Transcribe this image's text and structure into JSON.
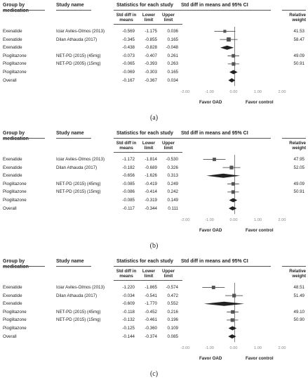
{
  "headers": {
    "group": "Group by medication",
    "study": "Study name",
    "stats": "Statistics for each study",
    "std_diff": "Std diff in means",
    "lower": "Lower limit",
    "upper": "Upper limit",
    "ci": "Std diff in means and 95% CI",
    "weight": "Relative weight"
  },
  "axis_ticks": [
    "-2.00",
    "-1.00",
    "0.00",
    "1.00",
    "2.00"
  ],
  "favor_left": "Favor OAD",
  "favor_right": "Favor control",
  "chart_data": [
    {
      "type": "forest",
      "caption": "(a)",
      "xlim": [
        -2,
        2
      ],
      "rows": [
        {
          "group": "Exenatide",
          "study": "Iciar Aviles-Olmos (2013)",
          "est": "-0.569",
          "lo": "-1.175",
          "hi": "0.036",
          "weight": "41.53",
          "kind": "study"
        },
        {
          "group": "Exenatide",
          "study": "Dilan Athauda (2017)",
          "est": "-0.345",
          "lo": "-0.855",
          "hi": "0.165",
          "weight": "58.47",
          "kind": "study"
        },
        {
          "group": "Exenatide",
          "study": "",
          "est": "-0.438",
          "lo": "-0.828",
          "hi": "-0.048",
          "weight": "",
          "kind": "subtotal"
        },
        {
          "group": "Pioglitazone",
          "study": "NET-PD (2015) (45mg)",
          "est": "-0.073",
          "lo": "-0.407",
          "hi": "0.261",
          "weight": "49.09",
          "kind": "study"
        },
        {
          "group": "Pioglitazone",
          "study": "NET-PD (2005) (15mg)",
          "est": "-0.065",
          "lo": "-0.393",
          "hi": "0.263",
          "weight": "50.91",
          "kind": "study"
        },
        {
          "group": "Pioglitazone",
          "study": "",
          "est": "-0.069",
          "lo": "-0.303",
          "hi": "0.165",
          "weight": "",
          "kind": "subtotal"
        },
        {
          "group": "Overall",
          "study": "",
          "est": "-0.167",
          "lo": "-0.367",
          "hi": "0.034",
          "weight": "",
          "kind": "overall"
        }
      ]
    },
    {
      "type": "forest",
      "caption": "(b)",
      "xlim": [
        -2,
        2
      ],
      "rows": [
        {
          "group": "Exenatide",
          "study": "Iciar Aviles-Olmos (2013)",
          "est": "-1.172",
          "lo": "-1.814",
          "hi": "-0.530",
          "weight": "47.95",
          "kind": "study"
        },
        {
          "group": "Exenatide",
          "study": "Dilan Athauda (2017)",
          "est": "-0.182",
          "lo": "-0.689",
          "hi": "0.326",
          "weight": "52.05",
          "kind": "study"
        },
        {
          "group": "Exenatide",
          "study": "",
          "est": "-0.656",
          "lo": "-1.626",
          "hi": "0.313",
          "weight": "",
          "kind": "subtotal"
        },
        {
          "group": "Pioglitazone",
          "study": "NET-PD (2015) (45mg)",
          "est": "-0.085",
          "lo": "-0.419",
          "hi": "0.249",
          "weight": "49.09",
          "kind": "study"
        },
        {
          "group": "Pioglitazone",
          "study": "NET-PD (2015) (15mg)",
          "est": "-0.086",
          "lo": "-0.414",
          "hi": "0.242",
          "weight": "50.91",
          "kind": "study"
        },
        {
          "group": "Pioglitazone",
          "study": "",
          "est": "-0.085",
          "lo": "-0.319",
          "hi": "0.149",
          "weight": "",
          "kind": "subtotal"
        },
        {
          "group": "Overall",
          "study": "",
          "est": "-0.117",
          "lo": "-0.344",
          "hi": "0.111",
          "weight": "",
          "kind": "overall"
        }
      ]
    },
    {
      "type": "forest",
      "caption": "(c)",
      "xlim": [
        -2,
        2
      ],
      "rows": [
        {
          "group": "Exenatide",
          "study": "Iciar Aviles-Olmos (2013)",
          "est": "-1.220",
          "lo": "-1.865",
          "hi": "-0.574",
          "weight": "48.51",
          "kind": "study"
        },
        {
          "group": "Exenatide",
          "study": "Dilan Athauda (2017)",
          "est": "-0.034",
          "lo": "-0.541",
          "hi": "0.472",
          "weight": "51.49",
          "kind": "study"
        },
        {
          "group": "Exenatide",
          "study": "",
          "est": "-0.609",
          "lo": "-1.770",
          "hi": "0.552",
          "weight": "",
          "kind": "subtotal"
        },
        {
          "group": "Pioglitazone",
          "study": "NET-PD (2015) (45mg)",
          "est": "-0.118",
          "lo": "-0.452",
          "hi": "0.216",
          "weight": "49.10",
          "kind": "study"
        },
        {
          "group": "Pioglitazone",
          "study": "NET-PD (2015) (15mg)",
          "est": "-0.132",
          "lo": "-0.461",
          "hi": "0.196",
          "weight": "50.90",
          "kind": "study"
        },
        {
          "group": "Pioglitazone",
          "study": "",
          "est": "-0.125",
          "lo": "-0.360",
          "hi": "0.109",
          "weight": "",
          "kind": "subtotal"
        },
        {
          "group": "Overall",
          "study": "",
          "est": "-0.144",
          "lo": "-0.374",
          "hi": "0.085",
          "weight": "",
          "kind": "overall"
        }
      ]
    }
  ]
}
